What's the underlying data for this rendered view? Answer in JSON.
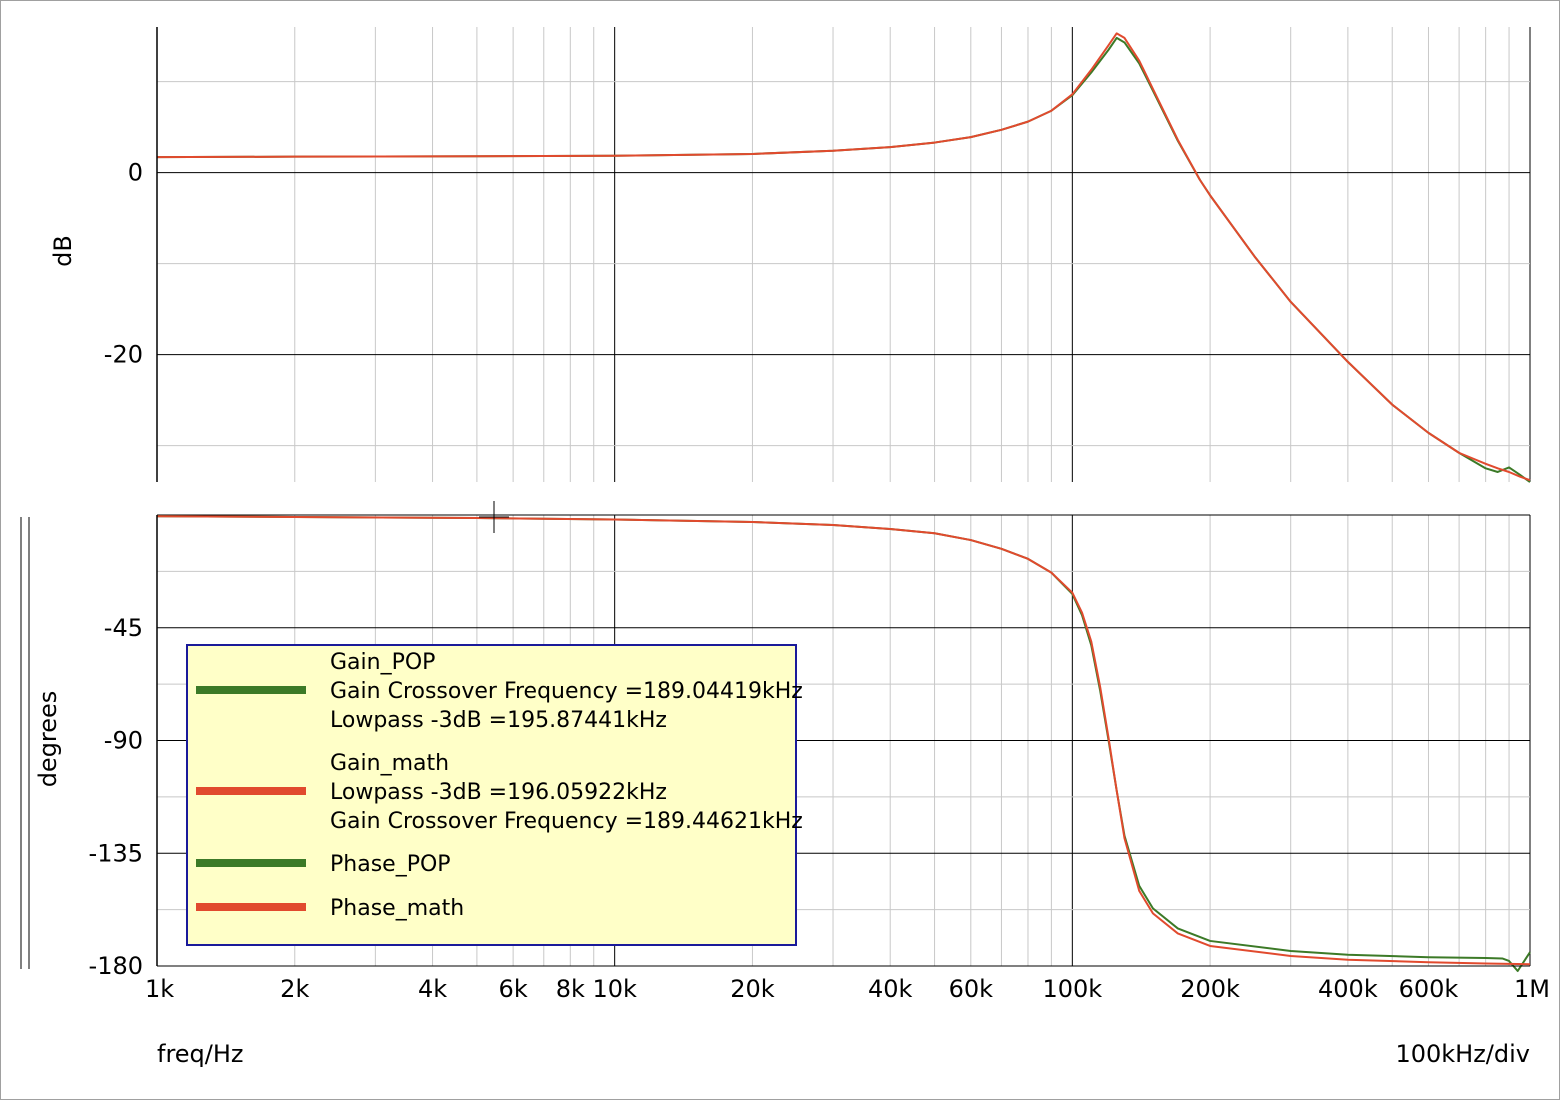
{
  "chart_data": {
    "type": "line",
    "x_scale": "log",
    "xlim": [
      1000,
      1000000
    ],
    "x_ticks": [
      1000,
      2000,
      4000,
      6000,
      8000,
      10000,
      20000,
      40000,
      60000,
      100000,
      200000,
      400000,
      600000,
      1000000
    ],
    "x_tick_labels": [
      "1k",
      "2k",
      "4k",
      "6k",
      "8k",
      "10k",
      "20k",
      "40k",
      "60k",
      "100k",
      "200k",
      "400k",
      "600k",
      "1M"
    ],
    "xlabel": "freq/Hz",
    "x_division_note": "100kHz/div",
    "grid": true,
    "panels": [
      {
        "name": "gain",
        "ylabel": "dB",
        "ylim": [
          -34,
          16
        ],
        "y_ticks": [
          0,
          -20
        ],
        "y_tick_labels": [
          "0",
          "-20"
        ],
        "series": [
          {
            "key": "Gain_POP",
            "color": "#3c7a27",
            "x": [
              1000,
              2000,
              5000,
              10000,
              20000,
              30000,
              40000,
              50000,
              60000,
              70000,
              80000,
              90000,
              100000,
              110000,
              120000,
              125000,
              130000,
              140000,
              150000,
              170000,
              190000,
              200000,
              250000,
              300000,
              400000,
              500000,
              600000,
              700000,
              800000,
              850000,
              900000,
              950000,
              1000000
            ],
            "y": [
              1.7,
              1.75,
              1.8,
              1.85,
              2.05,
              2.4,
              2.8,
              3.3,
              3.9,
              4.7,
              5.6,
              6.8,
              8.5,
              11.0,
              13.5,
              14.8,
              14.3,
              12.0,
              9.0,
              3.5,
              -0.8,
              -2.5,
              -9.2,
              -14.2,
              -20.8,
              -25.5,
              -28.6,
              -30.8,
              -32.5,
              -32.9,
              -32.4,
              -33.2,
              -34.0
            ]
          },
          {
            "key": "Gain_math",
            "color": "#e14a2e",
            "x": [
              1000,
              2000,
              5000,
              10000,
              20000,
              30000,
              40000,
              50000,
              60000,
              70000,
              80000,
              90000,
              100000,
              110000,
              120000,
              125000,
              130000,
              140000,
              150000,
              170000,
              190000,
              200000,
              250000,
              300000,
              400000,
              500000,
              600000,
              700000,
              800000,
              850000,
              900000,
              950000,
              1000000
            ],
            "y": [
              1.7,
              1.75,
              1.8,
              1.85,
              2.05,
              2.4,
              2.8,
              3.3,
              3.9,
              4.7,
              5.6,
              6.8,
              8.6,
              11.3,
              14.0,
              15.3,
              14.8,
              12.3,
              9.2,
              3.6,
              -0.8,
              -2.5,
              -9.2,
              -14.2,
              -20.8,
              -25.5,
              -28.6,
              -30.8,
              -32.0,
              -32.5,
              -32.9,
              -33.4,
              -33.8
            ]
          }
        ]
      },
      {
        "name": "phase",
        "ylabel": "degrees",
        "ylim": [
          -180,
          0
        ],
        "y_ticks": [
          -45,
          -90,
          -135,
          -180
        ],
        "y_tick_labels": [
          "-45",
          "-90",
          "-135",
          "-180"
        ],
        "series": [
          {
            "key": "Phase_POP",
            "color": "#3c7a27",
            "x": [
              1000,
              2000,
              5000,
              10000,
              20000,
              30000,
              40000,
              50000,
              60000,
              70000,
              80000,
              90000,
              100000,
              105000,
              110000,
              115000,
              120000,
              125000,
              130000,
              140000,
              150000,
              170000,
              200000,
              300000,
              400000,
              600000,
              800000,
              870000,
              900000,
              940000,
              1000000
            ],
            "y": [
              -0.5,
              -0.8,
              -1.2,
              -1.8,
              -2.8,
              -4.0,
              -5.6,
              -7.3,
              -10.0,
              -13.5,
              -17.5,
              -23.0,
              -31.5,
              -40.0,
              -52.0,
              -70.0,
              -90.0,
              -110.0,
              -128.0,
              -148.0,
              -157.0,
              -165.0,
              -170.0,
              -174.0,
              -175.5,
              -176.5,
              -176.8,
              -177.0,
              -178.0,
              -182.0,
              -174.5
            ]
          },
          {
            "key": "Phase_math",
            "color": "#e14a2e",
            "x": [
              1000,
              2000,
              5000,
              10000,
              20000,
              30000,
              40000,
              50000,
              60000,
              70000,
              80000,
              90000,
              100000,
              105000,
              110000,
              115000,
              120000,
              125000,
              130000,
              140000,
              150000,
              170000,
              200000,
              300000,
              400000,
              600000,
              800000,
              1000000
            ],
            "y": [
              -0.5,
              -0.8,
              -1.2,
              -1.8,
              -2.8,
              -4.0,
              -5.6,
              -7.3,
              -10.0,
              -13.5,
              -17.5,
              -23.0,
              -31.0,
              -39.0,
              -50.5,
              -68.5,
              -89.0,
              -110.0,
              -129.0,
              -150.0,
              -159.0,
              -167.0,
              -172.0,
              -176.0,
              -177.5,
              -178.5,
              -179.0,
              -179.3
            ]
          }
        ]
      }
    ],
    "legend": {
      "placement": "inside phase panel, lower-left",
      "entries": [
        {
          "color": "#3c7a27",
          "lines": [
            "Gain_POP",
            "Gain Crossover Frequency =189.04419kHz",
            "Lowpass -3dB =195.87441kHz"
          ]
        },
        {
          "color": "#e14a2e",
          "lines": [
            "Gain_math",
            "Lowpass -3dB =196.05922kHz",
            "Gain Crossover Frequency =189.44621kHz"
          ]
        },
        {
          "color": "#3c7a27",
          "lines": [
            "Phase_POP"
          ]
        },
        {
          "color": "#e14a2e",
          "lines": [
            "Phase_math"
          ]
        }
      ]
    }
  }
}
